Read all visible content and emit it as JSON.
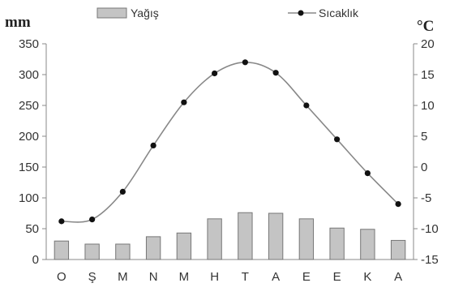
{
  "chart_data": {
    "type": "bar+line",
    "categories": [
      "O",
      "Ş",
      "M",
      "N",
      "M",
      "H",
      "T",
      "A",
      "E",
      "E",
      "K",
      "A"
    ],
    "series": [
      {
        "name": "Yağış",
        "type": "bar",
        "axis": "left",
        "values": [
          30,
          25,
          25,
          37,
          43,
          66,
          76,
          75,
          66,
          51,
          49,
          31
        ]
      },
      {
        "name": "Sıcaklık",
        "type": "line",
        "axis": "right",
        "values": [
          -8.8,
          -8.5,
          -4.0,
          3.5,
          10.5,
          15.2,
          17.0,
          15.3,
          10.0,
          4.5,
          -1.0,
          -6.0
        ]
      }
    ],
    "left_axis": {
      "unit": "mm",
      "ticks": [
        0,
        50,
        100,
        150,
        200,
        250,
        300,
        350
      ],
      "ylim": [
        0,
        350
      ]
    },
    "right_axis": {
      "unit": "°C",
      "ticks": [
        -15,
        -10,
        -5,
        0,
        5,
        10,
        15,
        20
      ],
      "ylim": [
        -15,
        20
      ]
    },
    "legend_placement": "top",
    "colors": {
      "bar_fill": "#c4c4c4",
      "bar_stroke": "#777777",
      "line": "#888888",
      "marker": "#111111",
      "axis": "#888888"
    }
  }
}
